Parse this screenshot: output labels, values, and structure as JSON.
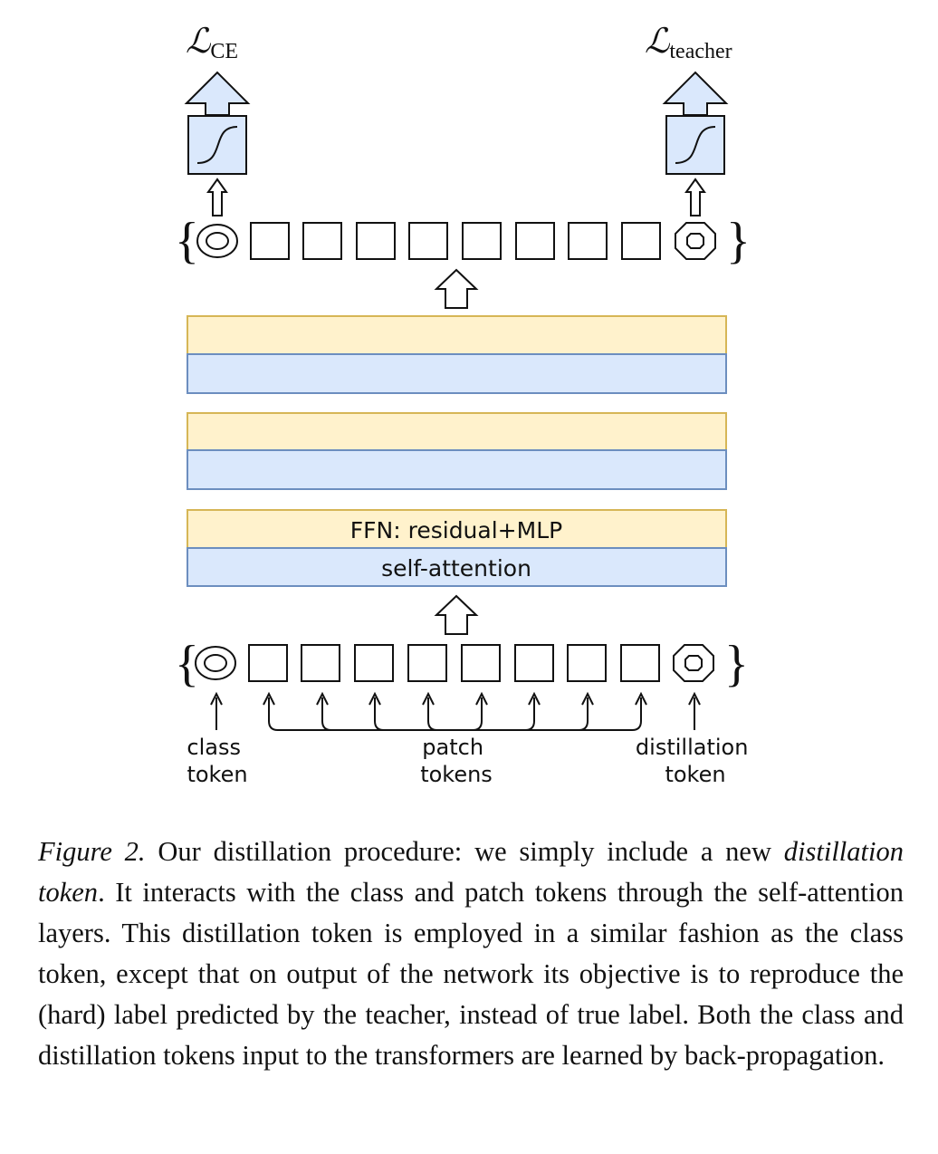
{
  "losses": {
    "left": {
      "symbol": "ℒ",
      "subscript": "CE"
    },
    "right": {
      "symbol": "ℒ",
      "subscript": "teacher"
    }
  },
  "layers": {
    "ffn_label": "FFN: residual+MLP",
    "attention_label": "self-attention"
  },
  "token_labels": {
    "class": [
      "class",
      "token"
    ],
    "patch": [
      "patch",
      "tokens"
    ],
    "distillation": [
      "distillation",
      "token"
    ]
  },
  "caption": {
    "figure_label": "Figure 2.",
    "text_1": " Our distillation procedure: we simply include a new ",
    "emph": "distillation token",
    "text_2": ". It interacts with the class and patch tokens through the self-attention layers. This distillation token is employed in a similar fashion as the class token, except that on output of the network its objective is to reproduce the (hard) label predicted by the teacher, instead of true label. Both the class and distillation tokens input to the transformers are learned by back-propagation."
  },
  "colors": {
    "ffn_fill": "#fff2cc",
    "ffn_stroke": "#d6b656",
    "attn_fill": "#dae8fc",
    "attn_stroke": "#6c8ebf",
    "head_fill": "#dae8fc"
  }
}
